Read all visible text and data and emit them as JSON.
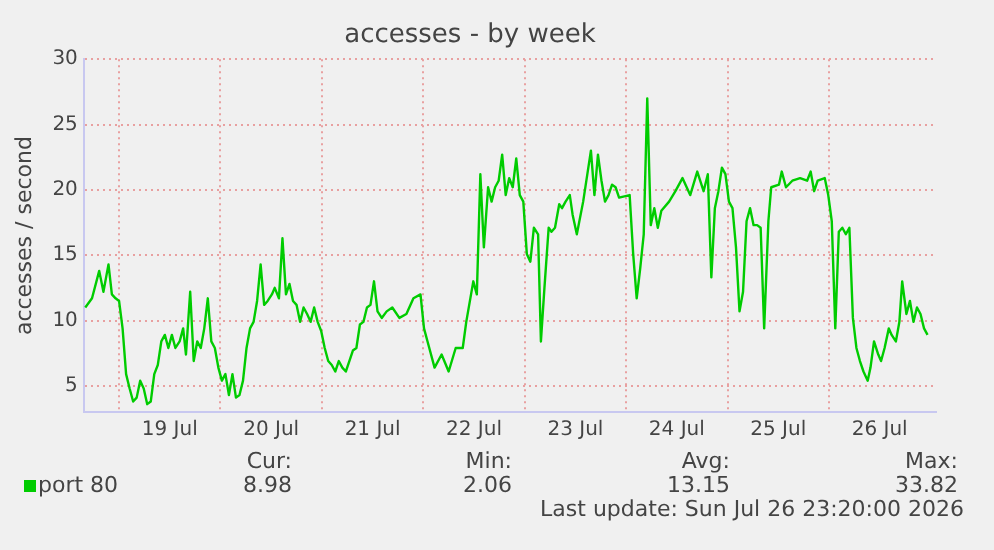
{
  "chart_data": {
    "type": "line",
    "title": "accesses - by week",
    "ylabel": "accesses / second",
    "x": [
      "2026-07-18T16:00",
      "2026-07-18T17:36",
      "2026-07-18T19:18",
      "2026-07-18T20:18",
      "2026-07-18T21:30",
      "2026-07-18T22:18",
      "2026-07-18T23:10",
      "2026-07-19T00:00",
      "2026-07-19T00:50",
      "2026-07-19T01:40",
      "2026-07-19T02:30",
      "2026-07-19T03:20",
      "2026-07-19T04:10",
      "2026-07-19T05:00",
      "2026-07-19T05:50",
      "2026-07-19T06:40",
      "2026-07-19T07:30",
      "2026-07-19T08:20",
      "2026-07-19T09:10",
      "2026-07-19T10:00",
      "2026-07-19T10:50",
      "2026-07-19T11:40",
      "2026-07-19T12:30",
      "2026-07-19T13:20",
      "2026-07-19T14:20",
      "2026-07-19T15:10",
      "2026-07-19T15:50",
      "2026-07-19T16:50",
      "2026-07-19T17:40",
      "2026-07-19T18:30",
      "2026-07-19T19:20",
      "2026-07-19T20:10",
      "2026-07-19T21:00",
      "2026-07-19T21:50",
      "2026-07-19T22:40",
      "2026-07-19T23:30",
      "2026-07-20T00:20",
      "2026-07-20T01:10",
      "2026-07-20T02:00",
      "2026-07-20T02:50",
      "2026-07-20T03:40",
      "2026-07-20T04:30",
      "2026-07-20T05:20",
      "2026-07-20T06:10",
      "2026-07-20T07:00",
      "2026-07-20T07:50",
      "2026-07-20T08:40",
      "2026-07-20T09:30",
      "2026-07-20T10:20",
      "2026-07-20T11:10",
      "2026-07-20T12:10",
      "2026-07-20T12:50",
      "2026-07-20T13:50",
      "2026-07-20T14:40",
      "2026-07-20T15:30",
      "2026-07-20T16:20",
      "2026-07-20T17:10",
      "2026-07-20T18:00",
      "2026-07-20T18:50",
      "2026-07-20T19:40",
      "2026-07-20T20:30",
      "2026-07-20T21:20",
      "2026-07-20T22:10",
      "2026-07-20T23:00",
      "2026-07-20T23:50",
      "2026-07-21T00:40",
      "2026-07-21T01:30",
      "2026-07-21T02:20",
      "2026-07-21T03:10",
      "2026-07-21T04:00",
      "2026-07-21T04:50",
      "2026-07-21T05:40",
      "2026-07-21T06:30",
      "2026-07-21T07:20",
      "2026-07-21T08:10",
      "2026-07-21T09:00",
      "2026-07-21T09:50",
      "2026-07-21T10:40",
      "2026-07-21T11:30",
      "2026-07-21T12:20",
      "2026-07-21T13:10",
      "2026-07-21T14:10",
      "2026-07-21T15:20",
      "2026-07-21T16:40",
      "2026-07-21T18:20",
      "2026-07-21T20:00",
      "2026-07-21T21:40",
      "2026-07-21T23:20",
      "2026-07-22T00:10",
      "2026-07-22T01:00",
      "2026-07-22T02:40",
      "2026-07-22T04:20",
      "2026-07-22T06:00",
      "2026-07-22T07:40",
      "2026-07-22T09:20",
      "2026-07-22T10:10",
      "2026-07-22T11:50",
      "2026-07-22T12:40",
      "2026-07-22T13:30",
      "2026-07-22T14:20",
      "2026-07-22T15:20",
      "2026-07-22T16:10",
      "2026-07-22T17:00",
      "2026-07-22T17:50",
      "2026-07-22T18:40",
      "2026-07-22T19:30",
      "2026-07-22T20:20",
      "2026-07-22T21:10",
      "2026-07-22T22:00",
      "2026-07-22T22:50",
      "2026-07-22T23:40",
      "2026-07-23T00:30",
      "2026-07-23T01:20",
      "2026-07-23T02:10",
      "2026-07-23T03:10",
      "2026-07-23T03:50",
      "2026-07-23T04:40",
      "2026-07-23T05:40",
      "2026-07-23T06:20",
      "2026-07-23T07:10",
      "2026-07-23T08:10",
      "2026-07-23T08:50",
      "2026-07-23T09:40",
      "2026-07-23T10:40",
      "2026-07-23T11:20",
      "2026-07-23T12:20",
      "2026-07-23T13:50",
      "2026-07-23T15:40",
      "2026-07-23T16:30",
      "2026-07-23T17:20",
      "2026-07-23T18:10",
      "2026-07-23T19:00",
      "2026-07-23T19:50",
      "2026-07-23T20:40",
      "2026-07-23T21:30",
      "2026-07-23T22:20",
      "2026-07-24T00:50",
      "2026-07-24T01:40",
      "2026-07-24T02:30",
      "2026-07-24T03:20",
      "2026-07-24T04:10",
      "2026-07-24T05:00",
      "2026-07-24T05:50",
      "2026-07-24T06:40",
      "2026-07-24T07:30",
      "2026-07-24T08:20",
      "2026-07-24T10:10",
      "2026-07-24T11:40",
      "2026-07-24T13:20",
      "2026-07-24T15:10",
      "2026-07-24T16:50",
      "2026-07-24T18:20",
      "2026-07-24T19:20",
      "2026-07-24T20:10",
      "2026-07-24T21:00",
      "2026-07-24T21:50",
      "2026-07-24T22:40",
      "2026-07-24T23:30",
      "2026-07-25T00:20",
      "2026-07-25T01:10",
      "2026-07-25T02:00",
      "2026-07-25T02:50",
      "2026-07-25T03:40",
      "2026-07-25T04:30",
      "2026-07-25T05:20",
      "2026-07-25T06:10",
      "2026-07-25T07:00",
      "2026-07-25T07:50",
      "2026-07-25T08:40",
      "2026-07-25T09:40",
      "2026-07-25T10:20",
      "2026-07-25T12:10",
      "2026-07-25T12:50",
      "2026-07-25T13:50",
      "2026-07-25T15:20",
      "2026-07-25T17:10",
      "2026-07-25T18:50",
      "2026-07-25T19:40",
      "2026-07-25T20:30",
      "2026-07-25T21:20",
      "2026-07-25T23:00",
      "2026-07-25T23:50",
      "2026-07-26T00:40",
      "2026-07-26T01:30",
      "2026-07-26T02:20",
      "2026-07-26T03:10",
      "2026-07-26T04:00",
      "2026-07-26T04:50",
      "2026-07-26T05:40",
      "2026-07-26T06:30",
      "2026-07-26T07:20",
      "2026-07-26T08:10",
      "2026-07-26T09:10",
      "2026-07-26T09:50",
      "2026-07-26T10:40",
      "2026-07-26T11:40",
      "2026-07-26T12:20",
      "2026-07-26T13:10",
      "2026-07-26T14:10",
      "2026-07-26T14:50",
      "2026-07-26T15:50",
      "2026-07-26T16:40",
      "2026-07-26T17:20",
      "2026-07-26T18:20",
      "2026-07-26T19:10",
      "2026-07-26T20:00",
      "2026-07-26T20:50",
      "2026-07-26T21:40",
      "2026-07-26T22:30",
      "2026-07-26T23:20"
    ],
    "series": [
      {
        "name": "port 80",
        "color": "#00cc00",
        "values": [
          11.0,
          11.7,
          13.8,
          12.2,
          14.3,
          12.0,
          11.7,
          11.5,
          9.4,
          5.9,
          4.8,
          3.8,
          4.1,
          5.4,
          4.8,
          3.6,
          3.8,
          5.9,
          6.6,
          8.4,
          8.9,
          7.9,
          8.9,
          7.9,
          8.4,
          9.4,
          7.4,
          12.2,
          6.9,
          8.4,
          7.9,
          9.4,
          11.7,
          8.4,
          7.9,
          6.4,
          5.4,
          5.9,
          4.3,
          5.9,
          4.1,
          4.3,
          5.4,
          7.9,
          9.4,
          9.9,
          11.5,
          14.3,
          11.2,
          11.5,
          12.0,
          12.5,
          11.7,
          16.3,
          12.0,
          12.8,
          11.5,
          11.2,
          9.9,
          11.0,
          10.5,
          9.9,
          11.0,
          9.9,
          9.2,
          7.9,
          6.9,
          6.6,
          6.1,
          6.9,
          6.4,
          6.1,
          6.9,
          7.7,
          7.9,
          9.7,
          9.9,
          11.0,
          11.2,
          13.0,
          10.7,
          10.2,
          10.7,
          11.0,
          10.2,
          10.5,
          11.7,
          12.0,
          9.4,
          8.4,
          6.4,
          7.4,
          6.1,
          7.9,
          7.9,
          9.9,
          13.0,
          12.0,
          21.2,
          15.6,
          20.2,
          19.1,
          20.2,
          20.7,
          22.7,
          19.6,
          20.9,
          20.2,
          22.4,
          19.6,
          19.1,
          15.1,
          14.5,
          17.1,
          16.6,
          8.4,
          12.5,
          17.1,
          16.8,
          17.1,
          18.9,
          18.6,
          19.1,
          19.6,
          18.1,
          16.6,
          19.1,
          23.0,
          19.6,
          22.7,
          20.7,
          19.1,
          19.6,
          20.4,
          20.2,
          19.4,
          19.6,
          15.1,
          11.7,
          14.0,
          16.6,
          27.0,
          17.3,
          18.6,
          17.1,
          18.4,
          19.1,
          19.9,
          20.9,
          19.6,
          21.4,
          19.9,
          21.2,
          13.3,
          18.6,
          19.9,
          21.7,
          21.2,
          19.1,
          18.6,
          15.6,
          10.7,
          12.2,
          17.6,
          18.6,
          17.3,
          17.3,
          17.1,
          9.4,
          17.6,
          20.2,
          20.4,
          21.4,
          20.2,
          20.7,
          20.9,
          20.7,
          21.4,
          19.9,
          20.7,
          20.9,
          19.6,
          17.6,
          9.4,
          16.8,
          17.1,
          16.6,
          17.1,
          10.2,
          7.9,
          6.9,
          6.1,
          5.4,
          6.4,
          8.4,
          7.4,
          6.9,
          7.9,
          9.4,
          8.9,
          8.4,
          9.9,
          13.0,
          10.5,
          11.5,
          9.9,
          11.0,
          10.5,
          9.4,
          8.9
        ]
      }
    ],
    "xlim": [
      "2026-07-18T15:40",
      "2026-07-27T01:20"
    ],
    "xticks": [
      {
        "value": "2026-07-19T00:00",
        "label": null
      },
      {
        "value": "2026-07-19T12:00",
        "label": "19 Jul"
      },
      {
        "value": "2026-07-20T00:00",
        "label": null
      },
      {
        "value": "2026-07-20T12:00",
        "label": "20 Jul"
      },
      {
        "value": "2026-07-21T00:00",
        "label": null
      },
      {
        "value": "2026-07-21T12:00",
        "label": "21 Jul"
      },
      {
        "value": "2026-07-22T00:00",
        "label": null
      },
      {
        "value": "2026-07-22T12:00",
        "label": "22 Jul"
      },
      {
        "value": "2026-07-23T00:00",
        "label": null
      },
      {
        "value": "2026-07-23T12:00",
        "label": "23 Jul"
      },
      {
        "value": "2026-07-24T00:00",
        "label": null
      },
      {
        "value": "2026-07-24T12:00",
        "label": "24 Jul"
      },
      {
        "value": "2026-07-25T00:00",
        "label": null
      },
      {
        "value": "2026-07-25T12:00",
        "label": "25 Jul"
      },
      {
        "value": "2026-07-26T00:00",
        "label": null
      },
      {
        "value": "2026-07-26T12:00",
        "label": "26 Jul"
      }
    ],
    "ylim": [
      3,
      30
    ],
    "yticks": [
      5,
      10,
      15,
      20,
      25,
      30
    ],
    "grid": true,
    "legend": "bottom left",
    "marker": "none",
    "line_style": "solid",
    "annotations": [
      "Cur:",
      "8.98",
      "Min:",
      "2.06",
      "Avg:",
      "13.15",
      "Max:",
      "33.82",
      "Last update: Sun Jul 26 23:20:00 2026"
    ]
  }
}
